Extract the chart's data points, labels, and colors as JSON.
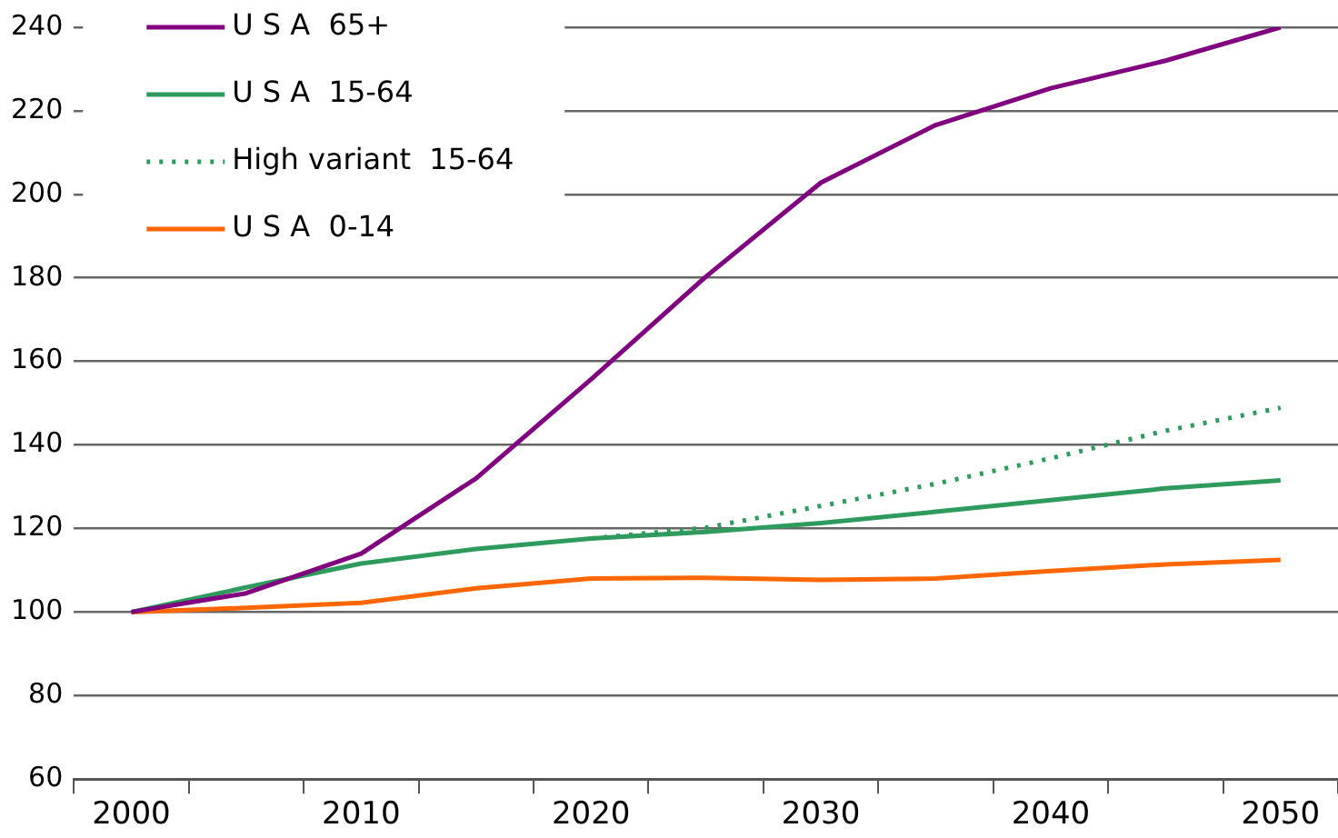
{
  "chart_data": {
    "type": "line",
    "categories": [
      "2000",
      null,
      "2010",
      null,
      "2020",
      null,
      "2030",
      null,
      "2040",
      null,
      "2050"
    ],
    "series": [
      {
        "name": "U S A  65+",
        "color": "#800080",
        "values": [
          100,
          104.5,
          114,
          132,
          155.7,
          180.3,
          202.8,
          216.6,
          225.4,
          232,
          240
        ]
      },
      {
        "name": "U S A  15-64",
        "color": "#2e9a5c",
        "values": [
          100,
          105.9,
          111.6,
          115.1,
          117.6,
          119.2,
          121.3,
          124,
          126.8,
          129.6,
          131.5
        ]
      },
      {
        "name": "High variant  15-64",
        "color": "#2e9a5c",
        "line_style": "dotted",
        "values": [
          null,
          null,
          null,
          null,
          117.6,
          120.2,
          125.4,
          130.7,
          136.8,
          143.4,
          148.9
        ]
      },
      {
        "name": "U S A  0-14",
        "color": "#ff6600",
        "values": [
          100,
          101,
          102.2,
          105.7,
          108,
          108.2,
          107.7,
          108,
          109.8,
          111.4,
          112.5
        ]
      }
    ],
    "ylim": [
      60,
      240
    ],
    "yticks": [
      60,
      80,
      100,
      120,
      140,
      160,
      180,
      200,
      220,
      240
    ],
    "grid": "y",
    "legend": "top left",
    "marker": "none"
  }
}
